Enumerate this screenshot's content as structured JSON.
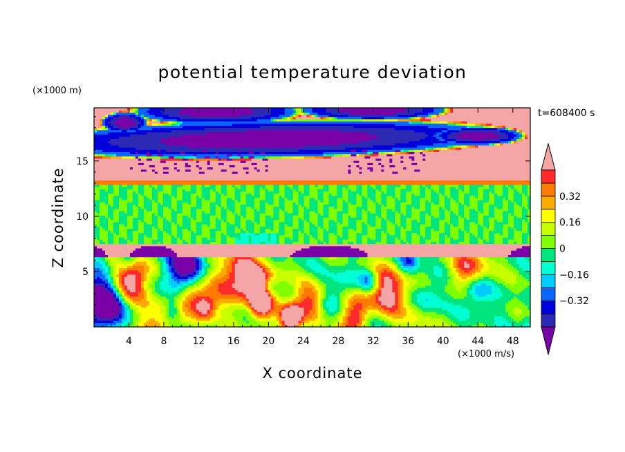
{
  "chart_data": {
    "type": "heatmap",
    "title": "potential temperature deviation",
    "xlabel": "X coordinate",
    "ylabel": "Z coordinate",
    "x_unit": "(×1000 m/s)",
    "y_unit": "(×1000 m)",
    "time_label": "t=608400 s",
    "x_ticks": [
      4,
      8,
      12,
      16,
      20,
      24,
      28,
      32,
      36,
      40,
      44,
      48
    ],
    "y_ticks": [
      5,
      10,
      15
    ],
    "xlim": [
      0,
      50
    ],
    "ylim": [
      0,
      19.8
    ],
    "colorbar": {
      "levels": [
        -0.48,
        -0.4,
        -0.32,
        -0.24,
        -0.16,
        -0.08,
        0,
        0.08,
        0.16,
        0.24,
        0.32,
        0.4,
        0.48
      ],
      "labeled_levels": [
        "0.32",
        "0.16",
        "0",
        "−0.16",
        "−0.32"
      ],
      "colors": [
        "#7a00a8",
        "#2c29b4",
        "#0000dd",
        "#0a66ff",
        "#00ccff",
        "#00ffd2",
        "#00e67f",
        "#7fff00",
        "#c8ff00",
        "#ffff00",
        "#ffaa00",
        "#ff7a00",
        "#ff2a2a",
        "#f4a6a6"
      ],
      "extends": "both"
    },
    "regions": [
      {
        "z": [
          13.3,
          19.8
        ],
        "field": "mostly above +0.48 with patches below −0.48"
      },
      {
        "z": [
          12.8,
          13.3
        ],
        "field": "+0.32 to +0.40 band"
      },
      {
        "z": [
          7.6,
          12.8
        ],
        "field": "−0.08 to +0.08"
      },
      {
        "z": [
          6.3,
          7.6
        ],
        "field": "above +0.48 with dome-shaped regions below −0.48"
      },
      {
        "z": [
          0,
          6.3
        ],
        "field": "turbulent eddies spanning −0.48 to +0.48"
      }
    ]
  }
}
